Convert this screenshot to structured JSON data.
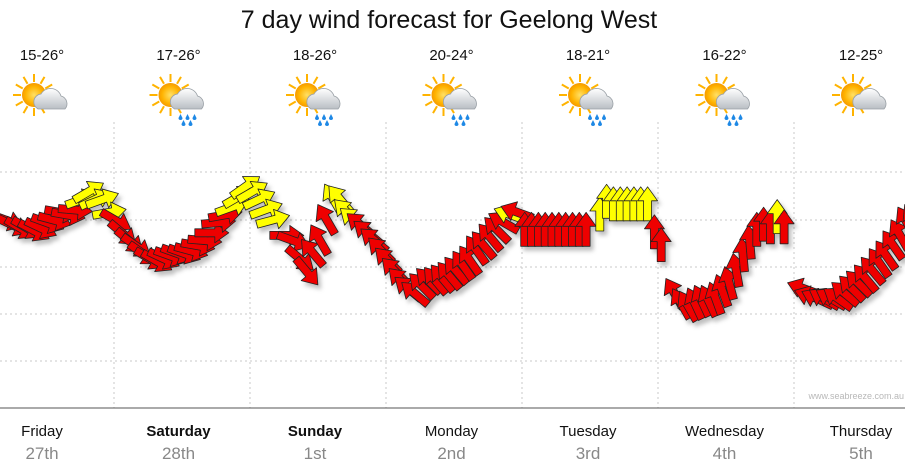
{
  "chart_data": {
    "type": "line",
    "title": "7 day wind forecast for Geelong West",
    "watermark": "www.seabreeze.com.au",
    "grid": true,
    "days": [
      {
        "name": "Friday",
        "date": "27th",
        "temp": "15-26°",
        "icon": "sun-cloud-icon",
        "bold": false
      },
      {
        "name": "Saturday",
        "date": "28th",
        "temp": "17-26°",
        "icon": "sun-cloud-rain-icon",
        "bold": true
      },
      {
        "name": "Sunday",
        "date": "1st",
        "temp": "18-26°",
        "icon": "sun-cloud-rain-icon",
        "bold": true
      },
      {
        "name": "Monday",
        "date": "2nd",
        "temp": "20-24°",
        "icon": "sun-cloud-rain-icon",
        "bold": false
      },
      {
        "name": "Tuesday",
        "date": "3rd",
        "temp": "18-21°",
        "icon": "sun-cloud-rain-icon",
        "bold": false
      },
      {
        "name": "Wednesday",
        "date": "4th",
        "temp": "16-22°",
        "icon": "sun-cloud-rain-icon",
        "bold": false
      },
      {
        "name": "Thursday",
        "date": "5th",
        "temp": "12-25°",
        "icon": "sun-cloud-icon",
        "bold": false
      }
    ],
    "colors": {
      "strong": "#ee0000",
      "moderate": "#ffff00",
      "outline": "#222222"
    },
    "y_level_range": [
      0,
      100
    ],
    "series": [
      {
        "values": [
          {
            "x": 0.0,
            "y": 58,
            "dir": 110,
            "c": "r"
          },
          {
            "x": 0.05,
            "y": 56,
            "dir": 115,
            "c": "r"
          },
          {
            "x": 0.1,
            "y": 55,
            "dir": 120,
            "c": "r"
          },
          {
            "x": 0.15,
            "y": 55,
            "dir": 120,
            "c": "r"
          },
          {
            "x": 0.2,
            "y": 54,
            "dir": 118,
            "c": "r"
          },
          {
            "x": 0.25,
            "y": 55,
            "dir": 115,
            "c": "r"
          },
          {
            "x": 0.3,
            "y": 57,
            "dir": 110,
            "c": "r"
          },
          {
            "x": 0.35,
            "y": 58,
            "dir": 105,
            "c": "r"
          },
          {
            "x": 0.4,
            "y": 61,
            "dir": 100,
            "c": "r"
          },
          {
            "x": 0.45,
            "y": 60,
            "dir": 100,
            "c": "r"
          },
          {
            "x": 0.5,
            "y": 62,
            "dir": 95,
            "c": "r"
          },
          {
            "x": 0.55,
            "y": 66,
            "dir": 70,
            "c": "y"
          },
          {
            "x": 0.6,
            "y": 69,
            "dir": 60,
            "c": "y"
          },
          {
            "x": 0.65,
            "y": 66,
            "dir": 65,
            "c": "y"
          },
          {
            "x": 0.7,
            "y": 66,
            "dir": 70,
            "c": "y"
          },
          {
            "x": 0.75,
            "y": 61,
            "dir": 80,
            "c": "y"
          },
          {
            "x": 0.8,
            "y": 58,
            "dir": 120,
            "c": "r"
          },
          {
            "x": 0.85,
            "y": 53,
            "dir": 130,
            "c": "r"
          },
          {
            "x": 0.9,
            "y": 50,
            "dir": 130,
            "c": "r"
          },
          {
            "x": 0.95,
            "y": 48,
            "dir": 125,
            "c": "r"
          },
          {
            "x": 1.0,
            "y": 45,
            "dir": 125,
            "c": "r"
          },
          {
            "x": 1.05,
            "y": 43,
            "dir": 120,
            "c": "r"
          },
          {
            "x": 1.1,
            "y": 42,
            "dir": 120,
            "c": "r"
          },
          {
            "x": 1.15,
            "y": 43,
            "dir": 115,
            "c": "r"
          },
          {
            "x": 1.2,
            "y": 44,
            "dir": 110,
            "c": "r"
          },
          {
            "x": 1.25,
            "y": 45,
            "dir": 110,
            "c": "r"
          },
          {
            "x": 1.3,
            "y": 45,
            "dir": 110,
            "c": "r"
          },
          {
            "x": 1.35,
            "y": 46,
            "dir": 105,
            "c": "r"
          },
          {
            "x": 1.4,
            "y": 48,
            "dir": 100,
            "c": "r"
          },
          {
            "x": 1.45,
            "y": 50,
            "dir": 95,
            "c": "r"
          },
          {
            "x": 1.5,
            "y": 53,
            "dir": 90,
            "c": "r"
          },
          {
            "x": 1.55,
            "y": 57,
            "dir": 85,
            "c": "r"
          },
          {
            "x": 1.6,
            "y": 60,
            "dir": 80,
            "c": "r"
          },
          {
            "x": 1.65,
            "y": 63,
            "dir": 70,
            "c": "y"
          },
          {
            "x": 1.7,
            "y": 67,
            "dir": 60,
            "c": "y"
          },
          {
            "x": 1.75,
            "y": 71,
            "dir": 55,
            "c": "y"
          },
          {
            "x": 1.8,
            "y": 69,
            "dir": 60,
            "c": "y"
          },
          {
            "x": 1.85,
            "y": 66,
            "dir": 65,
            "c": "y"
          },
          {
            "x": 1.9,
            "y": 62,
            "dir": 70,
            "c": "y"
          },
          {
            "x": 1.95,
            "y": 58,
            "dir": 75,
            "c": "y"
          },
          {
            "x": 2.05,
            "y": 52,
            "dir": 90,
            "c": "r"
          },
          {
            "x": 2.1,
            "y": 50,
            "dir": 110,
            "c": "r"
          },
          {
            "x": 2.15,
            "y": 43,
            "dir": 130,
            "c": "r"
          },
          {
            "x": 2.2,
            "y": 38,
            "dir": 140,
            "c": "r"
          },
          {
            "x": 2.25,
            "y": 45,
            "dir": 320,
            "c": "r"
          },
          {
            "x": 2.3,
            "y": 50,
            "dir": 330,
            "c": "r"
          },
          {
            "x": 2.35,
            "y": 58,
            "dir": 330,
            "c": "r"
          },
          {
            "x": 2.4,
            "y": 66,
            "dir": 330,
            "c": "y"
          },
          {
            "x": 2.45,
            "y": 66,
            "dir": 320,
            "c": "y"
          },
          {
            "x": 2.5,
            "y": 61,
            "dir": 315,
            "c": "y"
          },
          {
            "x": 2.55,
            "y": 58,
            "dir": 310,
            "c": "y"
          },
          {
            "x": 2.6,
            "y": 56,
            "dir": 310,
            "c": "r"
          },
          {
            "x": 2.65,
            "y": 53,
            "dir": 310,
            "c": "r"
          },
          {
            "x": 2.7,
            "y": 50,
            "dir": 310,
            "c": "r"
          },
          {
            "x": 2.75,
            "y": 46,
            "dir": 315,
            "c": "r"
          },
          {
            "x": 2.8,
            "y": 42,
            "dir": 315,
            "c": "r"
          },
          {
            "x": 2.85,
            "y": 38,
            "dir": 315,
            "c": "r"
          },
          {
            "x": 2.9,
            "y": 34,
            "dir": 315,
            "c": "r"
          },
          {
            "x": 2.95,
            "y": 31,
            "dir": 310,
            "c": "r"
          },
          {
            "x": 3.0,
            "y": 29,
            "dir": 310,
            "c": "r"
          },
          {
            "x": 3.05,
            "y": 32,
            "dir": 315,
            "c": "r"
          },
          {
            "x": 3.1,
            "y": 34,
            "dir": 315,
            "c": "r"
          },
          {
            "x": 3.15,
            "y": 34,
            "dir": 320,
            "c": "r"
          },
          {
            "x": 3.2,
            "y": 35,
            "dir": 320,
            "c": "r"
          },
          {
            "x": 3.25,
            "y": 36,
            "dir": 320,
            "c": "r"
          },
          {
            "x": 3.3,
            "y": 38,
            "dir": 320,
            "c": "r"
          },
          {
            "x": 3.35,
            "y": 40,
            "dir": 325,
            "c": "r"
          },
          {
            "x": 3.4,
            "y": 42,
            "dir": 325,
            "c": "r"
          },
          {
            "x": 3.45,
            "y": 46,
            "dir": 325,
            "c": "r"
          },
          {
            "x": 3.5,
            "y": 48,
            "dir": 320,
            "c": "r"
          },
          {
            "x": 3.55,
            "y": 51,
            "dir": 320,
            "c": "r"
          },
          {
            "x": 3.6,
            "y": 54,
            "dir": 315,
            "c": "r"
          },
          {
            "x": 3.65,
            "y": 57,
            "dir": 300,
            "c": "r"
          },
          {
            "x": 3.7,
            "y": 60,
            "dir": 290,
            "c": "y"
          },
          {
            "x": 3.75,
            "y": 61,
            "dir": 290,
            "c": "r"
          },
          {
            "x": 3.8,
            "y": 54,
            "dir": 0,
            "c": "r"
          },
          {
            "x": 3.85,
            "y": 54,
            "dir": 0,
            "c": "r"
          },
          {
            "x": 3.9,
            "y": 54,
            "dir": 0,
            "c": "r"
          },
          {
            "x": 3.95,
            "y": 54,
            "dir": 0,
            "c": "r"
          },
          {
            "x": 4.0,
            "y": 54,
            "dir": 0,
            "c": "r"
          },
          {
            "x": 4.05,
            "y": 54,
            "dir": 0,
            "c": "r"
          },
          {
            "x": 4.1,
            "y": 54,
            "dir": 0,
            "c": "r"
          },
          {
            "x": 4.15,
            "y": 54,
            "dir": 0,
            "c": "r"
          },
          {
            "x": 4.2,
            "y": 54,
            "dir": 0,
            "c": "r"
          },
          {
            "x": 4.25,
            "y": 54,
            "dir": 0,
            "c": "r"
          },
          {
            "x": 4.35,
            "y": 60,
            "dir": 0,
            "c": "y"
          },
          {
            "x": 4.4,
            "y": 65,
            "dir": 0,
            "c": "y"
          },
          {
            "x": 4.45,
            "y": 64,
            "dir": 0,
            "c": "y"
          },
          {
            "x": 4.5,
            "y": 64,
            "dir": 0,
            "c": "y"
          },
          {
            "x": 4.55,
            "y": 64,
            "dir": 0,
            "c": "y"
          },
          {
            "x": 4.6,
            "y": 64,
            "dir": 0,
            "c": "y"
          },
          {
            "x": 4.65,
            "y": 64,
            "dir": 0,
            "c": "y"
          },
          {
            "x": 4.7,
            "y": 64,
            "dir": 0,
            "c": "y"
          },
          {
            "x": 4.75,
            "y": 53,
            "dir": 0,
            "c": "r"
          },
          {
            "x": 4.8,
            "y": 48,
            "dir": 0,
            "c": "r"
          },
          {
            "x": 4.9,
            "y": 29,
            "dir": 330,
            "c": "r"
          },
          {
            "x": 4.95,
            "y": 25,
            "dir": 330,
            "c": "r"
          },
          {
            "x": 5.0,
            "y": 24,
            "dir": 330,
            "c": "r"
          },
          {
            "x": 5.05,
            "y": 25,
            "dir": 335,
            "c": "r"
          },
          {
            "x": 5.1,
            "y": 26,
            "dir": 335,
            "c": "r"
          },
          {
            "x": 5.15,
            "y": 26,
            "dir": 335,
            "c": "r"
          },
          {
            "x": 5.2,
            "y": 27,
            "dir": 340,
            "c": "r"
          },
          {
            "x": 5.25,
            "y": 30,
            "dir": 340,
            "c": "r"
          },
          {
            "x": 5.3,
            "y": 33,
            "dir": 345,
            "c": "r"
          },
          {
            "x": 5.35,
            "y": 38,
            "dir": 350,
            "c": "r"
          },
          {
            "x": 5.4,
            "y": 44,
            "dir": 355,
            "c": "r"
          },
          {
            "x": 5.45,
            "y": 49,
            "dir": 355,
            "c": "r"
          },
          {
            "x": 5.5,
            "y": 54,
            "dir": 0,
            "c": "r"
          },
          {
            "x": 5.55,
            "y": 56,
            "dir": 0,
            "c": "r"
          },
          {
            "x": 5.6,
            "y": 55,
            "dir": 0,
            "c": "r"
          },
          {
            "x": 5.65,
            "y": 59,
            "dir": 0,
            "c": "y"
          },
          {
            "x": 5.7,
            "y": 55,
            "dir": 0,
            "c": "r"
          },
          {
            "x": 5.85,
            "y": 31,
            "dir": 290,
            "c": "r"
          },
          {
            "x": 5.9,
            "y": 28,
            "dir": 290,
            "c": "r"
          },
          {
            "x": 5.95,
            "y": 27,
            "dir": 295,
            "c": "r"
          },
          {
            "x": 6.0,
            "y": 27,
            "dir": 300,
            "c": "r"
          },
          {
            "x": 6.05,
            "y": 27,
            "dir": 300,
            "c": "r"
          },
          {
            "x": 6.1,
            "y": 27,
            "dir": 305,
            "c": "r"
          },
          {
            "x": 6.15,
            "y": 29,
            "dir": 310,
            "c": "r"
          },
          {
            "x": 6.2,
            "y": 31,
            "dir": 315,
            "c": "r"
          },
          {
            "x": 6.25,
            "y": 33,
            "dir": 315,
            "c": "r"
          },
          {
            "x": 6.3,
            "y": 35,
            "dir": 320,
            "c": "r"
          },
          {
            "x": 6.35,
            "y": 38,
            "dir": 320,
            "c": "r"
          },
          {
            "x": 6.4,
            "y": 41,
            "dir": 325,
            "c": "r"
          },
          {
            "x": 6.45,
            "y": 44,
            "dir": 325,
            "c": "r"
          },
          {
            "x": 6.5,
            "y": 48,
            "dir": 325,
            "c": "r"
          },
          {
            "x": 6.55,
            "y": 52,
            "dir": 330,
            "c": "r"
          },
          {
            "x": 6.6,
            "y": 57,
            "dir": 330,
            "c": "r"
          },
          {
            "x": 6.65,
            "y": 58,
            "dir": 330,
            "c": "r"
          }
        ]
      }
    ]
  }
}
